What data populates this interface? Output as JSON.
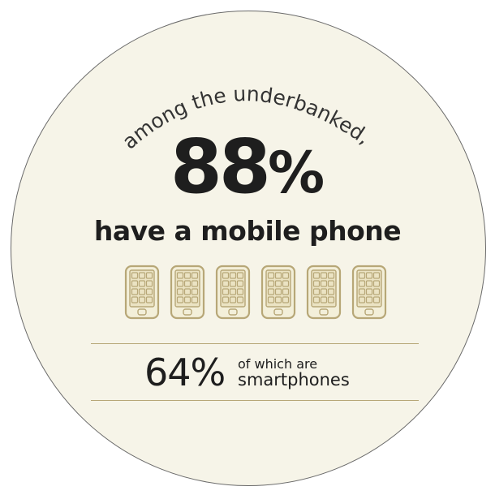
{
  "arc_text": "among the underbanked,",
  "headline_stat": {
    "number": "88",
    "sign": "%"
  },
  "headline_text": "have a mobile phone",
  "phones": {
    "count": 6,
    "icon": "mobile-phone-icon",
    "color": "#b7a777"
  },
  "smartphone_stat": {
    "value": "64%",
    "line1": "of which are",
    "line2": "smartphones"
  },
  "colors": {
    "background": "#f6f4e8",
    "text": "#1e1e1e",
    "accent": "#b7a777"
  }
}
